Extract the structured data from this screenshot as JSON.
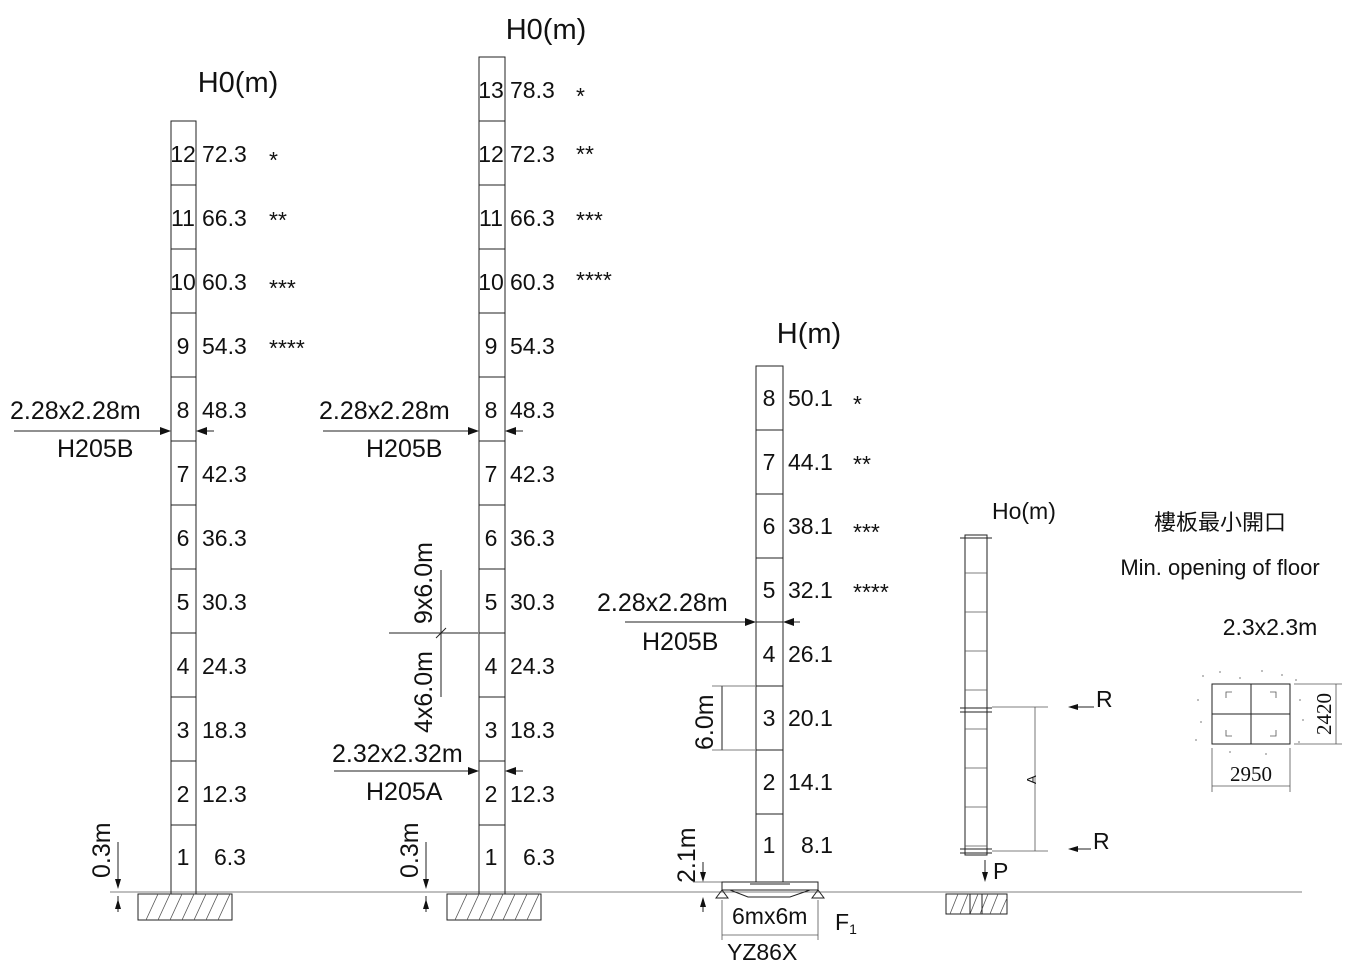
{
  "towers": [
    {
      "header": "H0(m)",
      "rows": [
        {
          "n": "12",
          "h": "72.3",
          "s": "*"
        },
        {
          "n": "11",
          "h": "66.3",
          "s": "**"
        },
        {
          "n": "10",
          "h": "60.3",
          "s": "***"
        },
        {
          "n": "9",
          "h": "54.3",
          "s": "****"
        },
        {
          "n": "8",
          "h": "48.3",
          "s": ""
        },
        {
          "n": "7",
          "h": "42.3",
          "s": ""
        },
        {
          "n": "6",
          "h": "36.3",
          "s": ""
        },
        {
          "n": "5",
          "h": "30.3",
          "s": ""
        },
        {
          "n": "4",
          "h": "24.3",
          "s": ""
        },
        {
          "n": "3",
          "h": "18.3",
          "s": ""
        },
        {
          "n": "2",
          "h": "12.3",
          "s": ""
        },
        {
          "n": "1",
          "h": "6.3",
          "s": ""
        }
      ],
      "anchors": [
        {
          "size": "2.28x2.28m",
          "model": "H205B"
        }
      ],
      "base_dim": "0.3m",
      "dims": []
    },
    {
      "header": "H0(m)",
      "rows": [
        {
          "n": "13",
          "h": "78.3",
          "s": "*"
        },
        {
          "n": "12",
          "h": "72.3",
          "s": "**"
        },
        {
          "n": "11",
          "h": "66.3",
          "s": "***"
        },
        {
          "n": "10",
          "h": "60.3",
          "s": "****"
        },
        {
          "n": "9",
          "h": "54.3",
          "s": ""
        },
        {
          "n": "8",
          "h": "48.3",
          "s": ""
        },
        {
          "n": "7",
          "h": "42.3",
          "s": ""
        },
        {
          "n": "6",
          "h": "36.3",
          "s": ""
        },
        {
          "n": "5",
          "h": "30.3",
          "s": ""
        },
        {
          "n": "4",
          "h": "24.3",
          "s": ""
        },
        {
          "n": "3",
          "h": "18.3",
          "s": ""
        },
        {
          "n": "2",
          "h": "12.3",
          "s": ""
        },
        {
          "n": "1",
          "h": "6.3",
          "s": ""
        }
      ],
      "anchors": [
        {
          "size": "2.28x2.28m",
          "model": "H205B"
        },
        {
          "size": "2.32x2.32m",
          "model": "H205A"
        }
      ],
      "base_dim": "0.3m",
      "dims": [
        "9x6.0m",
        "4x6.0m"
      ]
    },
    {
      "header": "H(m)",
      "rows": [
        {
          "n": "8",
          "h": "50.1",
          "s": "*"
        },
        {
          "n": "7",
          "h": "44.1",
          "s": "**"
        },
        {
          "n": "6",
          "h": "38.1",
          "s": "***"
        },
        {
          "n": "5",
          "h": "32.1",
          "s": "****"
        },
        {
          "n": "4",
          "h": "26.1",
          "s": ""
        },
        {
          "n": "3",
          "h": "20.1",
          "s": ""
        },
        {
          "n": "2",
          "h": "14.1",
          "s": ""
        },
        {
          "n": "1",
          "h": "8.1",
          "s": ""
        }
      ],
      "anchors": [
        {
          "size": "2.28x2.28m",
          "model": "H205B"
        }
      ],
      "base_dim": "2.1m",
      "dims": [
        "6.0m"
      ],
      "base_size": "6mx6m",
      "base_model": "YZ86X",
      "force": "F"
    }
  ],
  "climbing": {
    "header": "Ho(m)",
    "label_r_top": "R",
    "label_r_bottom": "R",
    "label_a": "A",
    "label_p": "P"
  },
  "opening": {
    "title_cn": "樓板最小開口",
    "title_en": "Min. opening of floor",
    "size": "2.3x2.3m",
    "dim_width": "2950",
    "dim_height": "2420"
  }
}
